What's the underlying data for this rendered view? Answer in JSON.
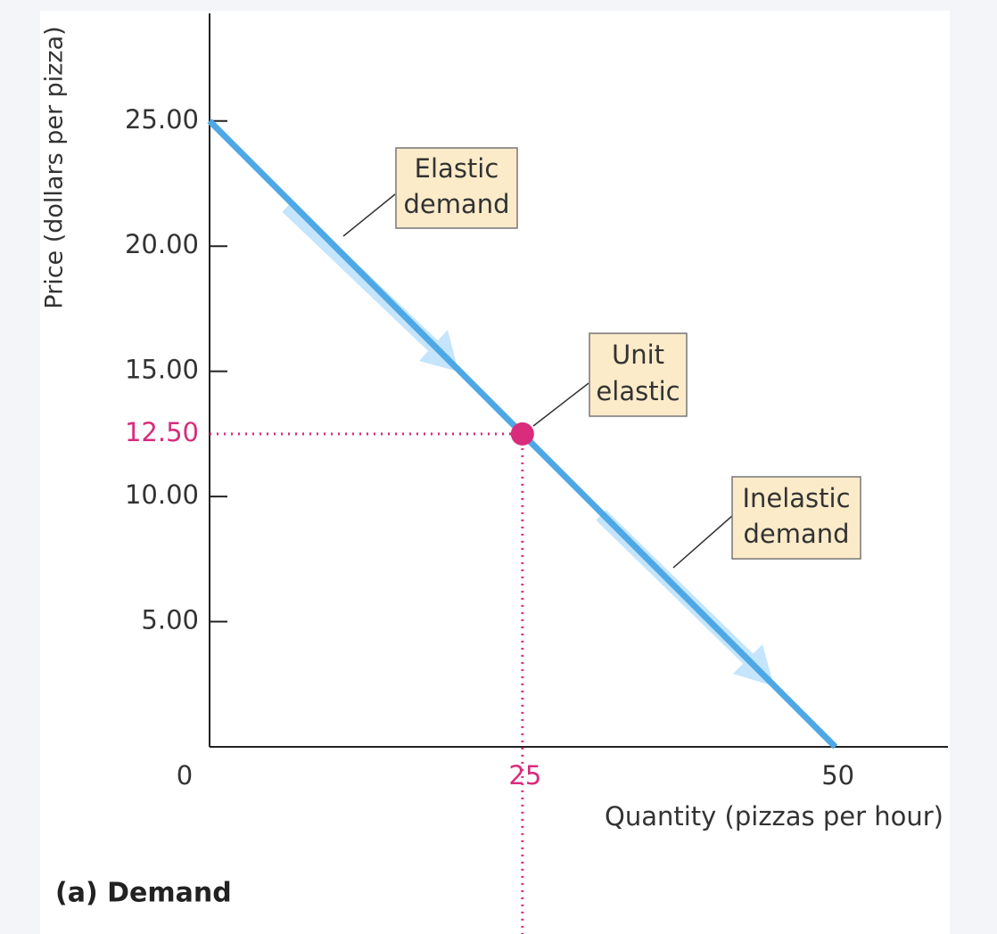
{
  "chart_data": {
    "type": "line",
    "title": "(a) Demand",
    "x_label": "Quantity (pizzas per hour)",
    "y_label": "Price (dollars per pizza)",
    "xlim": [
      0,
      59
    ],
    "ylim": [
      0,
      29.3
    ],
    "xticks": [
      0,
      25,
      50
    ],
    "yticks": [
      {
        "value": 5,
        "label": "5.00"
      },
      {
        "value": 10,
        "label": "10.00"
      },
      {
        "value": 15,
        "label": "15.00"
      },
      {
        "value": 20,
        "label": "20.00"
      },
      {
        "value": 25,
        "label": "25.00"
      }
    ],
    "series": [
      {
        "name": "Demand",
        "color": "#4ea8e6",
        "x": [
          0,
          50
        ],
        "y": [
          25,
          0
        ]
      }
    ],
    "point": {
      "x": 25,
      "y": 12.5,
      "label": "12.50",
      "color": "#d92c7c"
    },
    "annotations": [
      {
        "lines": [
          "Elastic",
          "demand"
        ]
      },
      {
        "lines": [
          "Unit",
          "elastic"
        ]
      },
      {
        "lines": [
          "Inelastic",
          "demand"
        ]
      }
    ]
  }
}
